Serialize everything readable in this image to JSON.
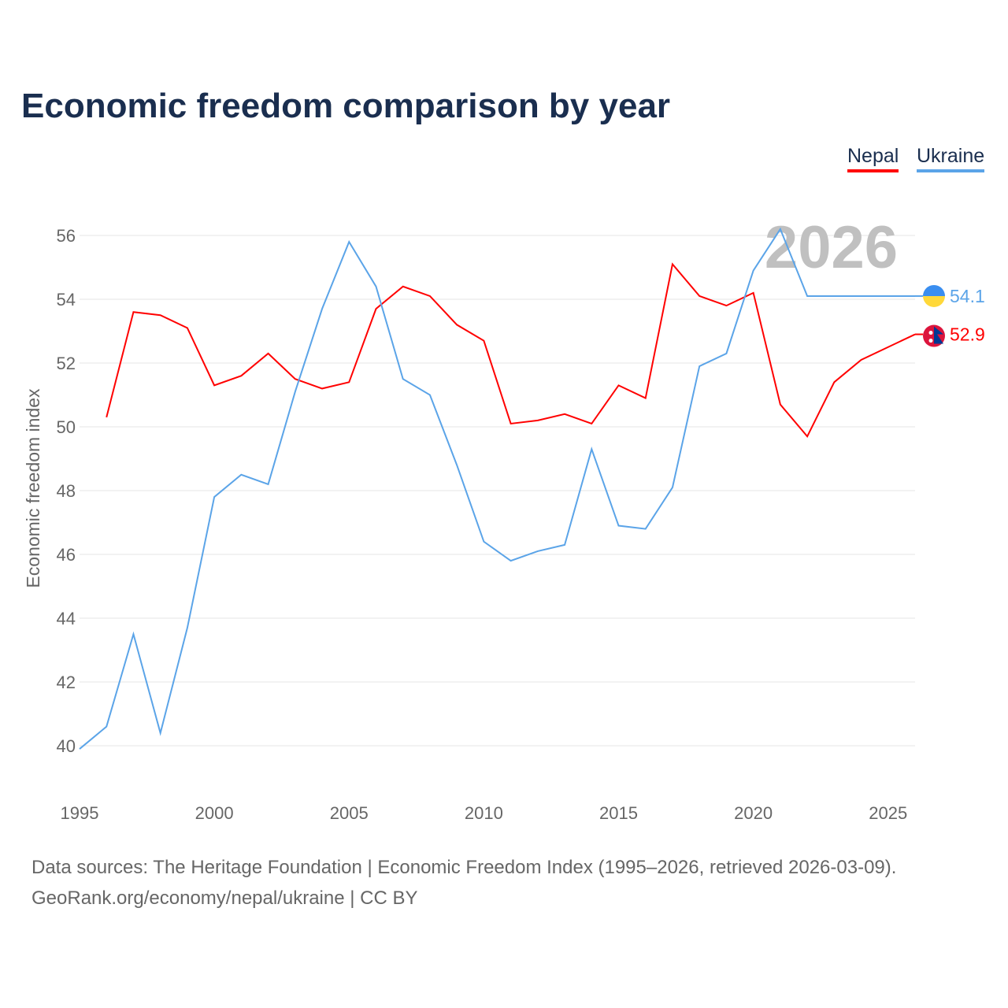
{
  "chart_data": {
    "type": "line",
    "title": "Economic freedom comparison by year",
    "xlabel": "",
    "ylabel": "Economic freedom index",
    "xlim": [
      1995,
      2026
    ],
    "ylim": [
      40,
      56
    ],
    "xticks": [
      1995,
      2000,
      2005,
      2010,
      2015,
      2020,
      2025
    ],
    "yticks": [
      40,
      42,
      44,
      46,
      48,
      50,
      52,
      54,
      56
    ],
    "grid": true,
    "legend_position": "top-right",
    "watermark_year": "2026",
    "series": [
      {
        "name": "Nepal",
        "color": "#ff0000",
        "end_label": "52.9",
        "flag": "nepal-flag",
        "x": [
          1996,
          1997,
          1998,
          1999,
          2000,
          2001,
          2002,
          2003,
          2004,
          2005,
          2006,
          2007,
          2008,
          2009,
          2010,
          2011,
          2012,
          2013,
          2014,
          2015,
          2016,
          2017,
          2018,
          2019,
          2020,
          2021,
          2022,
          2023,
          2024,
          2025,
          2026
        ],
        "values": [
          50.3,
          53.6,
          53.5,
          53.1,
          51.3,
          51.6,
          52.3,
          51.5,
          51.2,
          51.4,
          53.7,
          54.4,
          54.1,
          53.2,
          52.7,
          50.1,
          50.2,
          50.4,
          50.1,
          51.3,
          50.9,
          55.1,
          54.1,
          53.8,
          54.2,
          50.7,
          49.7,
          51.4,
          52.1,
          52.5,
          52.9
        ]
      },
      {
        "name": "Ukraine",
        "color": "#5ba4e8",
        "end_label": "54.1",
        "flag": "ukraine-flag",
        "x": [
          1995,
          1996,
          1997,
          1998,
          1999,
          2000,
          2001,
          2002,
          2003,
          2004,
          2005,
          2006,
          2007,
          2008,
          2009,
          2010,
          2011,
          2012,
          2013,
          2014,
          2015,
          2016,
          2017,
          2018,
          2019,
          2020,
          2021,
          2022,
          2023,
          2024,
          2025,
          2026
        ],
        "values": [
          39.9,
          40.6,
          43.5,
          40.4,
          43.7,
          47.8,
          48.5,
          48.2,
          51.1,
          53.7,
          55.8,
          54.4,
          51.5,
          51.0,
          48.8,
          46.4,
          45.8,
          46.1,
          46.3,
          49.3,
          46.9,
          46.8,
          48.1,
          51.9,
          52.3,
          54.9,
          56.2,
          54.1,
          54.1,
          54.1,
          54.1,
          54.1
        ]
      }
    ]
  },
  "footer": {
    "sources": "Data sources: The Heritage Foundation | Economic Freedom Index (1995–2026, retrieved 2026-03-09).",
    "credit": "GeoRank.org/economy/nepal/ukraine | CC BY"
  }
}
